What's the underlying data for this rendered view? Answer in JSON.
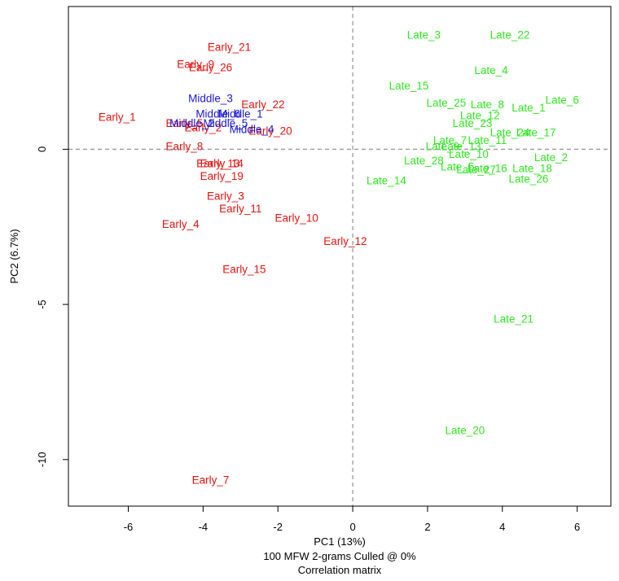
{
  "chart_data": {
    "type": "scatter",
    "title": "",
    "xlabel": "PC1 (13%)",
    "ylabel": "PC2 (6.7%)",
    "subtitle_lines": [
      "100 MFW 2-grams Culled @ 0%",
      "Correlation matrix"
    ],
    "xlim": [
      -7.6,
      6.9
    ],
    "ylim": [
      -11.5,
      4.6
    ],
    "x_ticks": [
      -6,
      -4,
      -2,
      0,
      2,
      4,
      6
    ],
    "y_ticks": [
      0,
      -5,
      -10
    ],
    "reference_lines": {
      "x": 0,
      "y": 0
    },
    "colors": {
      "Early": "#e8130f",
      "Middle": "#1a18d6",
      "Late": "#2ee81e",
      "axis": "#000000",
      "reference": "#9a9a9a"
    },
    "series": [
      {
        "group": "Early",
        "points": [
          {
            "label": "Early_21",
            "x": -3.3,
            "y": 3.3
          },
          {
            "label": "Early_9",
            "x": -4.2,
            "y": 2.75
          },
          {
            "label": "Early_26",
            "x": -3.8,
            "y": 2.65
          },
          {
            "label": "Early_22",
            "x": -2.4,
            "y": 1.45
          },
          {
            "label": "Early_1",
            "x": -6.3,
            "y": 1.05
          },
          {
            "label": "Early_5",
            "x": -4.5,
            "y": 0.85
          },
          {
            "label": "Early_2",
            "x": -4.0,
            "y": 0.7
          },
          {
            "label": "Early_20",
            "x": -2.2,
            "y": 0.6
          },
          {
            "label": "Early_8",
            "x": -4.5,
            "y": 0.1
          },
          {
            "label": "Early_13",
            "x": -3.6,
            "y": -0.45
          },
          {
            "label": "Early_14",
            "x": -3.5,
            "y": -0.45
          },
          {
            "label": "Early_19",
            "x": -3.5,
            "y": -0.85
          },
          {
            "label": "Early_3",
            "x": -3.4,
            "y": -1.5
          },
          {
            "label": "Early_11",
            "x": -3.0,
            "y": -1.9
          },
          {
            "label": "Early_10",
            "x": -1.5,
            "y": -2.2
          },
          {
            "label": "Early_4",
            "x": -4.6,
            "y": -2.4
          },
          {
            "label": "Early_12",
            "x": -0.2,
            "y": -2.95
          },
          {
            "label": "Early_15",
            "x": -2.9,
            "y": -3.85
          },
          {
            "label": "Early_7",
            "x": -3.8,
            "y": -10.65
          }
        ]
      },
      {
        "group": "Middle",
        "points": [
          {
            "label": "Middle_3",
            "x": -3.8,
            "y": 1.65
          },
          {
            "label": "Middle_6",
            "x": -3.6,
            "y": 1.15
          },
          {
            "label": "Middle_1",
            "x": -3.0,
            "y": 1.15
          },
          {
            "label": "Middle_5",
            "x": -3.4,
            "y": 0.85
          },
          {
            "label": "Middle_2",
            "x": -4.3,
            "y": 0.85
          },
          {
            "label": "Middle_4",
            "x": -2.7,
            "y": 0.65
          }
        ]
      },
      {
        "group": "Late",
        "points": [
          {
            "label": "Late_3",
            "x": 1.9,
            "y": 3.7
          },
          {
            "label": "Late_22",
            "x": 4.2,
            "y": 3.7
          },
          {
            "label": "Late_4",
            "x": 3.7,
            "y": 2.55
          },
          {
            "label": "Late_15",
            "x": 1.5,
            "y": 2.05
          },
          {
            "label": "Late_6",
            "x": 5.6,
            "y": 1.6
          },
          {
            "label": "Late_25",
            "x": 2.5,
            "y": 1.5
          },
          {
            "label": "Late_8",
            "x": 3.6,
            "y": 1.45
          },
          {
            "label": "Late_1",
            "x": 4.7,
            "y": 1.35
          },
          {
            "label": "Late_12",
            "x": 3.4,
            "y": 1.1
          },
          {
            "label": "Late_23",
            "x": 3.2,
            "y": 0.85
          },
          {
            "label": "Late_24",
            "x": 4.2,
            "y": 0.55
          },
          {
            "label": "Late_17",
            "x": 4.9,
            "y": 0.55
          },
          {
            "label": "Late_7",
            "x": 2.6,
            "y": 0.3
          },
          {
            "label": "Late_11",
            "x": 3.6,
            "y": 0.3
          },
          {
            "label": "Late_9",
            "x": 2.4,
            "y": 0.1
          },
          {
            "label": "Late_13",
            "x": 2.9,
            "y": 0.1
          },
          {
            "label": "Late_10",
            "x": 3.1,
            "y": -0.15
          },
          {
            "label": "Late_2",
            "x": 5.3,
            "y": -0.25
          },
          {
            "label": "Late_28",
            "x": 1.9,
            "y": -0.35
          },
          {
            "label": "Late_5",
            "x": 2.8,
            "y": -0.55
          },
          {
            "label": "Late_16",
            "x": 3.6,
            "y": -0.6
          },
          {
            "label": "Late_18",
            "x": 4.8,
            "y": -0.6
          },
          {
            "label": "Late_27",
            "x": 3.3,
            "y": -0.65
          },
          {
            "label": "Late_26",
            "x": 4.7,
            "y": -0.95
          },
          {
            "label": "Late_14",
            "x": 0.9,
            "y": -1.0
          },
          {
            "label": "Late_21",
            "x": 4.3,
            "y": -5.45
          },
          {
            "label": "Late_20",
            "x": 3.0,
            "y": -9.05
          }
        ]
      }
    ]
  }
}
